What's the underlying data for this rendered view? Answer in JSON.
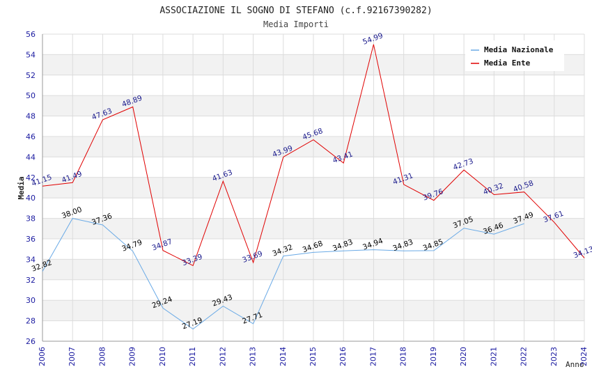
{
  "chart_data": {
    "type": "line",
    "title": "ASSOCIAZIONE IL SOGNO DI STEFANO (c.f.92167390282)",
    "subtitle": "Media Importi",
    "xlabel": "Anno",
    "ylabel": "Media",
    "ylim": [
      26,
      56
    ],
    "ytick_step": 2,
    "x": [
      2006,
      2007,
      2008,
      2009,
      2010,
      2011,
      2012,
      2013,
      2014,
      2015,
      2016,
      2017,
      2018,
      2019,
      2020,
      2021,
      2022,
      2023,
      2024
    ],
    "grid": true,
    "legend_position": "top-right",
    "series": [
      {
        "name": "Media Nazionale",
        "color": "#6aaae6",
        "label_color": "#000000",
        "values": [
          32.82,
          38.0,
          37.36,
          34.79,
          29.24,
          27.19,
          29.43,
          27.71,
          34.32,
          34.68,
          34.83,
          34.94,
          34.83,
          34.85,
          37.05,
          36.46,
          37.49,
          null,
          null
        ],
        "labels": [
          "32.82",
          "38.00",
          "37.36",
          "34.79",
          "29.24",
          "27.19",
          "29.43",
          "27.71",
          "34.32",
          "34.68",
          "34.83",
          "34.94",
          "34.83",
          "34.85",
          "37.05",
          "36.46",
          "37.49",
          null,
          null
        ]
      },
      {
        "name": "Media Ente",
        "color": "#e00000",
        "label_color": "#1a1a8c",
        "values": [
          41.15,
          41.49,
          47.63,
          48.89,
          34.87,
          33.39,
          41.63,
          33.69,
          43.99,
          45.68,
          43.41,
          54.99,
          41.31,
          39.76,
          42.73,
          40.32,
          40.58,
          37.61,
          34.13
        ],
        "labels": [
          "41.15",
          "41.49",
          "47.63",
          "48.89",
          "34.87",
          "33.39",
          "41.63",
          "33.69",
          "43.99",
          "45.68",
          "43.41",
          "54.99",
          "41.31",
          "39.76",
          "42.73",
          "40.32",
          "40.58",
          "37.61",
          "34.13"
        ]
      }
    ]
  }
}
